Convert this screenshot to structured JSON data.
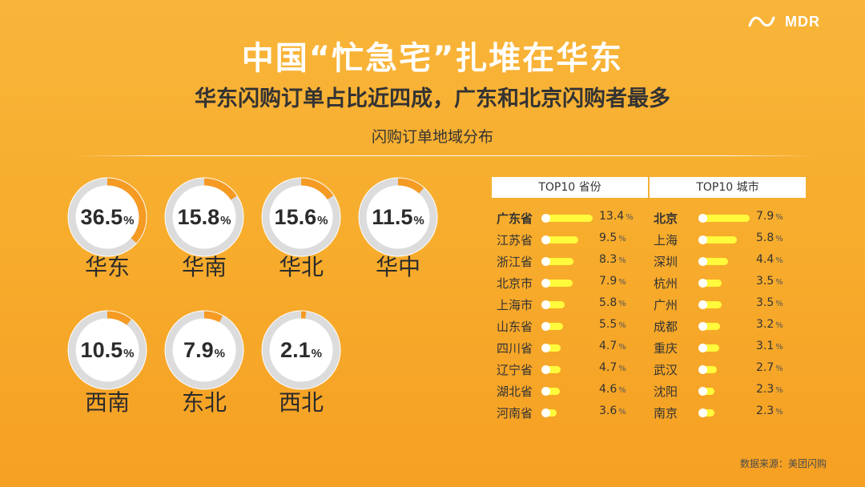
{
  "header": {
    "logo_left": {
      "text": "",
      "sub": ""
    },
    "logo_right": {
      "text": "MDR",
      "sub": ""
    }
  },
  "title": "中国“忙急宅”扎堆在华东",
  "subtitle": "华东闪购订单占比近四成，广东和北京闪购者最多",
  "section_title": "闪购订单地域分布",
  "colors": {
    "ring_track": "#dcdcdc",
    "ring_fill": "#f59a22",
    "bar": "#fffa3c"
  },
  "chart_data": [
    {
      "type": "pie",
      "title": "闪购订单地域分布",
      "unit": "%",
      "slices": [
        {
          "label": "华东",
          "value": 36.5
        },
        {
          "label": "华南",
          "value": 15.8
        },
        {
          "label": "华北",
          "value": 15.6
        },
        {
          "label": "华中",
          "value": 11.5
        },
        {
          "label": "西南",
          "value": 10.5
        },
        {
          "label": "东北",
          "value": 7.9
        },
        {
          "label": "西北",
          "value": 2.1
        }
      ]
    },
    {
      "type": "bar",
      "title": "TOP10 省份",
      "unit": "%",
      "categories": [
        "广东省",
        "江苏省",
        "浙江省",
        "北京市",
        "上海市",
        "山东省",
        "四川省",
        "辽宁省",
        "湖北省",
        "河南省"
      ],
      "values": [
        13.4,
        9.5,
        8.3,
        7.9,
        5.8,
        5.5,
        4.7,
        4.7,
        4.6,
        3.6
      ]
    },
    {
      "type": "bar",
      "title": "TOP10 城市",
      "unit": "%",
      "categories": [
        "北京",
        "上海",
        "深圳",
        "杭州",
        "广州",
        "成都",
        "重庆",
        "武汉",
        "沈阳",
        "南京"
      ],
      "values": [
        7.9,
        5.8,
        4.4,
        3.5,
        3.5,
        3.2,
        3.1,
        2.7,
        2.3,
        2.3
      ]
    }
  ],
  "source": "数据来源：美团闪购"
}
